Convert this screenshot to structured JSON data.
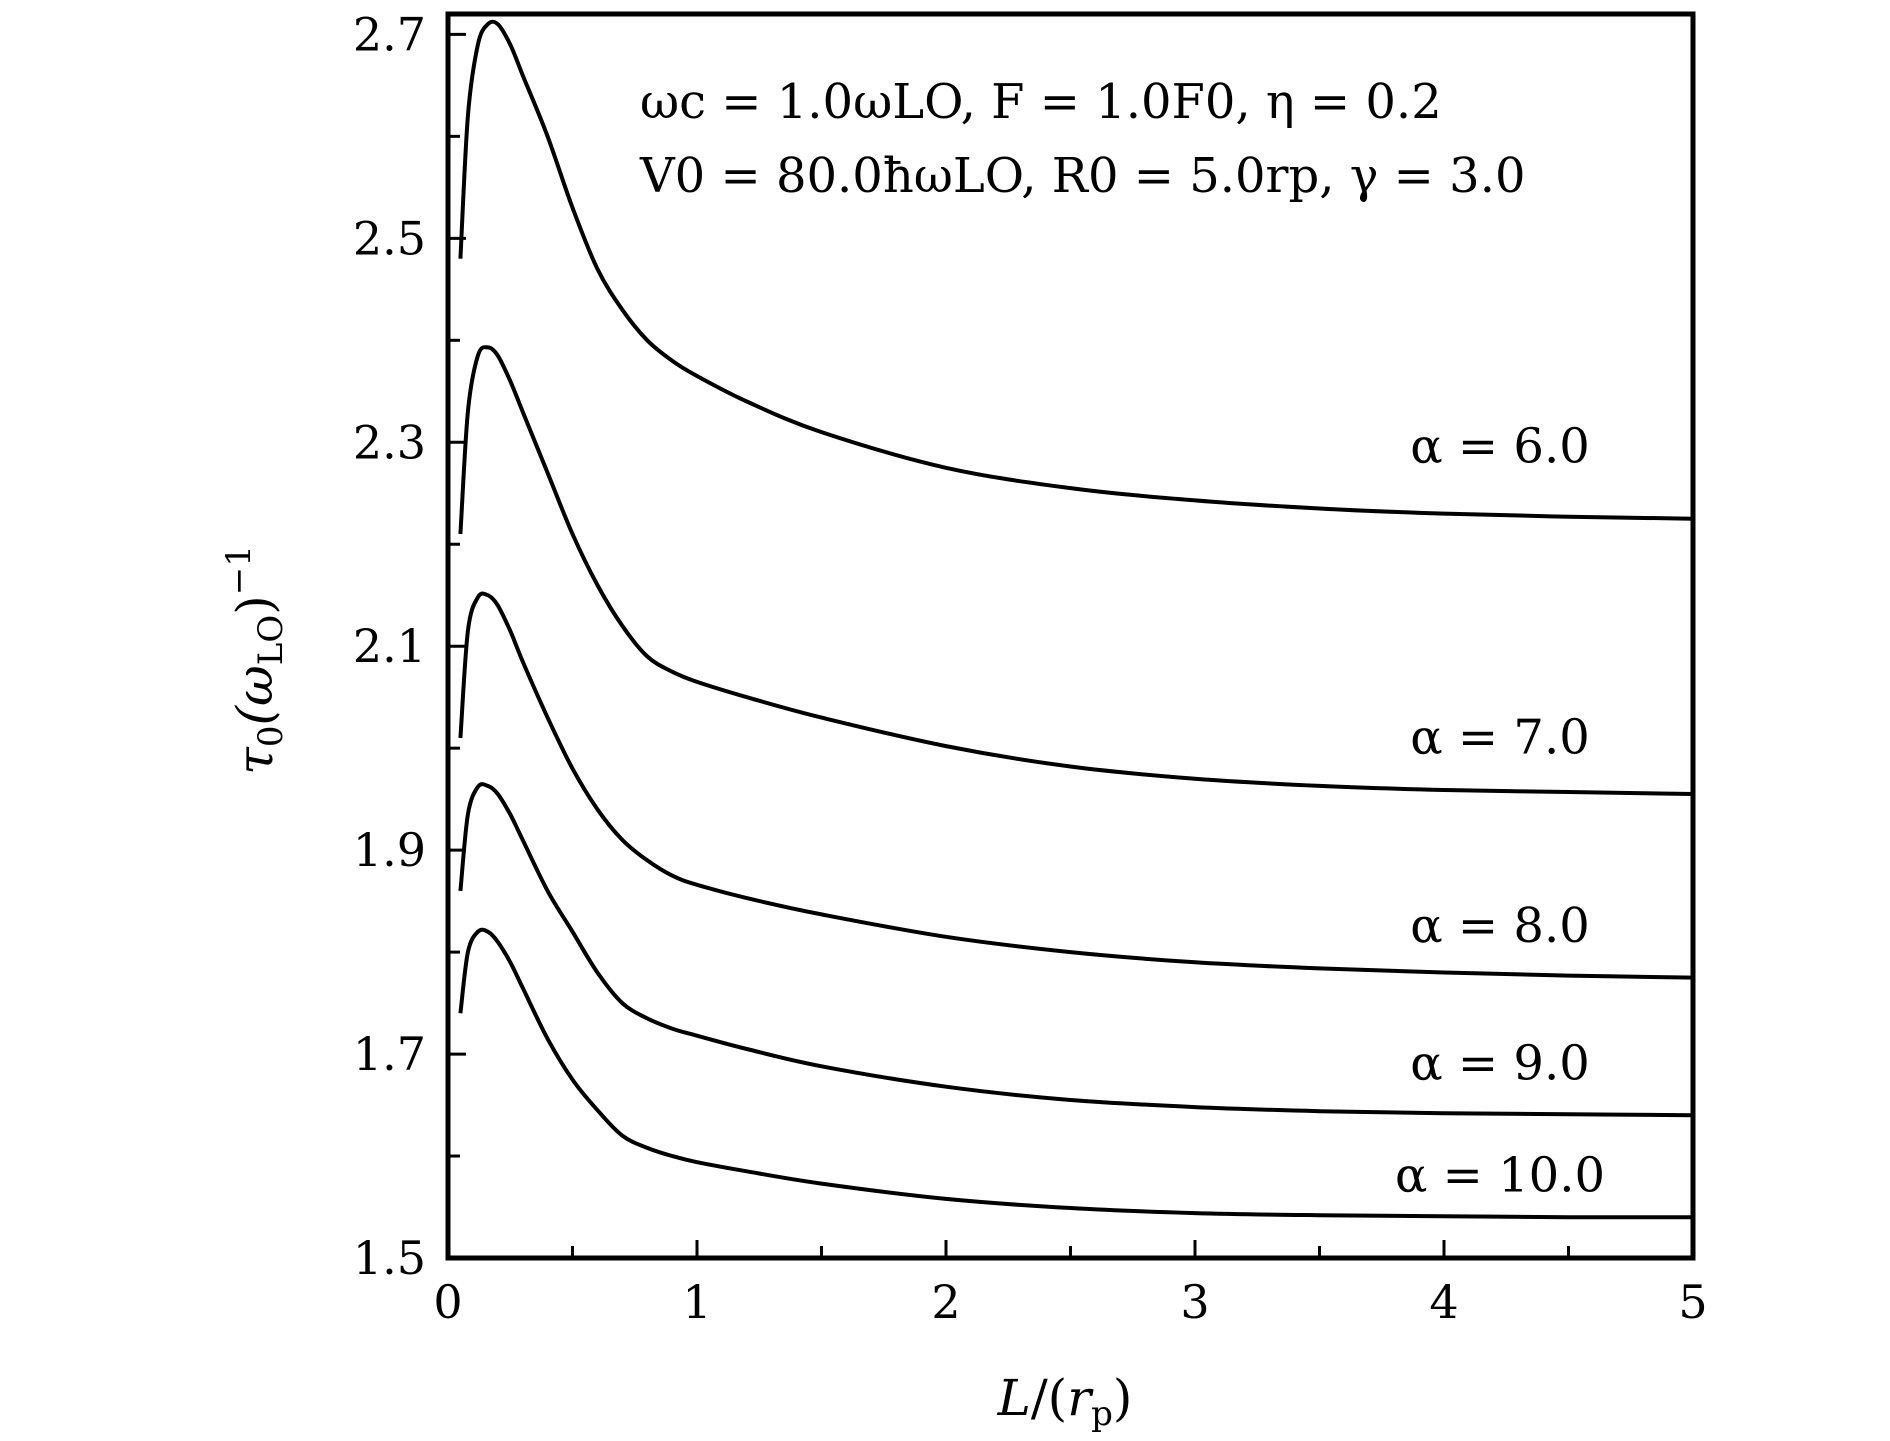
{
  "chart_data": {
    "type": "line",
    "title": "",
    "xlabel_parts": [
      "L",
      "/(",
      "r",
      "p",
      ")"
    ],
    "ylabel_parts": [
      "τ",
      "0",
      "(ω",
      "LO",
      ")",
      "−1"
    ],
    "xlim": [
      0,
      5
    ],
    "ylim": [
      1.5,
      2.72
    ],
    "x_ticks": [
      0,
      1,
      2,
      3,
      4,
      5
    ],
    "x_tick_labels": [
      "0",
      "1",
      "2",
      "3",
      "4",
      "5"
    ],
    "x_minor_ticks": [
      0.5,
      1.5,
      2.5,
      3.5,
      4.5
    ],
    "y_ticks": [
      1.5,
      1.7,
      1.9,
      2.1,
      2.3,
      2.5,
      2.7
    ],
    "y_tick_labels": [
      "1.5",
      "1.7",
      "1.9",
      "2.1",
      "2.3",
      "2.5",
      "2.7"
    ],
    "y_minor_ticks": [
      1.6,
      1.8,
      2.0,
      2.2,
      2.4,
      2.6
    ],
    "grid": false,
    "annotation_lines": [
      "ωc = 1.0ωLO, F = 1.0F0, η = 0.2",
      "V0 = 80.0ħωLO, R0 = 5.0rp, γ = 3.0"
    ],
    "series": [
      {
        "name": "α = 6.0",
        "x": [
          0.05,
          0.08,
          0.12,
          0.16,
          0.2,
          0.25,
          0.3,
          0.4,
          0.5,
          0.6,
          0.7,
          0.8,
          0.9,
          1.0,
          1.2,
          1.5,
          2.0,
          2.5,
          3.0,
          3.5,
          4.0,
          4.5,
          5.0
        ],
        "y": [
          2.48,
          2.62,
          2.69,
          2.71,
          2.71,
          2.69,
          2.66,
          2.6,
          2.53,
          2.47,
          2.43,
          2.4,
          2.38,
          2.365,
          2.34,
          2.31,
          2.275,
          2.255,
          2.243,
          2.235,
          2.23,
          2.227,
          2.225
        ]
      },
      {
        "name": "α = 7.0",
        "x": [
          0.05,
          0.08,
          0.12,
          0.16,
          0.2,
          0.25,
          0.3,
          0.4,
          0.5,
          0.6,
          0.7,
          0.8,
          0.9,
          1.0,
          1.2,
          1.5,
          2.0,
          2.5,
          3.0,
          3.5,
          4.0,
          4.5,
          5.0
        ],
        "y": [
          2.21,
          2.33,
          2.385,
          2.393,
          2.385,
          2.36,
          2.33,
          2.27,
          2.21,
          2.16,
          2.12,
          2.09,
          2.075,
          2.065,
          2.05,
          2.03,
          2.002,
          1.982,
          1.97,
          1.963,
          1.959,
          1.957,
          1.955
        ]
      },
      {
        "name": "α = 8.0",
        "x": [
          0.05,
          0.08,
          0.12,
          0.16,
          0.2,
          0.25,
          0.3,
          0.4,
          0.5,
          0.6,
          0.7,
          0.8,
          0.9,
          1.0,
          1.2,
          1.5,
          2.0,
          2.5,
          3.0,
          3.5,
          4.0,
          4.5,
          5.0
        ],
        "y": [
          2.01,
          2.115,
          2.148,
          2.15,
          2.14,
          2.115,
          2.085,
          2.03,
          1.98,
          1.94,
          1.91,
          1.89,
          1.875,
          1.866,
          1.853,
          1.837,
          1.815,
          1.8,
          1.79,
          1.784,
          1.78,
          1.777,
          1.775
        ]
      },
      {
        "name": "α = 9.0",
        "x": [
          0.05,
          0.08,
          0.12,
          0.16,
          0.2,
          0.25,
          0.3,
          0.4,
          0.5,
          0.6,
          0.7,
          0.8,
          0.9,
          1.0,
          1.2,
          1.5,
          2.0,
          2.5,
          3.0,
          3.5,
          4.0,
          4.5,
          5.0
        ],
        "y": [
          1.86,
          1.935,
          1.962,
          1.963,
          1.955,
          1.935,
          1.91,
          1.86,
          1.82,
          1.78,
          1.75,
          1.735,
          1.725,
          1.718,
          1.705,
          1.688,
          1.668,
          1.655,
          1.648,
          1.644,
          1.642,
          1.641,
          1.64
        ]
      },
      {
        "name": "α = 10.0",
        "x": [
          0.05,
          0.08,
          0.12,
          0.16,
          0.2,
          0.25,
          0.3,
          0.4,
          0.5,
          0.6,
          0.7,
          0.8,
          0.9,
          1.0,
          1.2,
          1.5,
          2.0,
          2.5,
          3.0,
          3.5,
          4.0,
          4.5,
          5.0
        ],
        "y": [
          1.74,
          1.8,
          1.82,
          1.82,
          1.81,
          1.79,
          1.765,
          1.715,
          1.675,
          1.645,
          1.62,
          1.608,
          1.6,
          1.594,
          1.585,
          1.573,
          1.558,
          1.549,
          1.544,
          1.542,
          1.541,
          1.54,
          1.54
        ]
      }
    ],
    "series_label_positions_y": [
      2.28,
      1.995,
      1.81,
      1.675,
      1.565
    ]
  }
}
